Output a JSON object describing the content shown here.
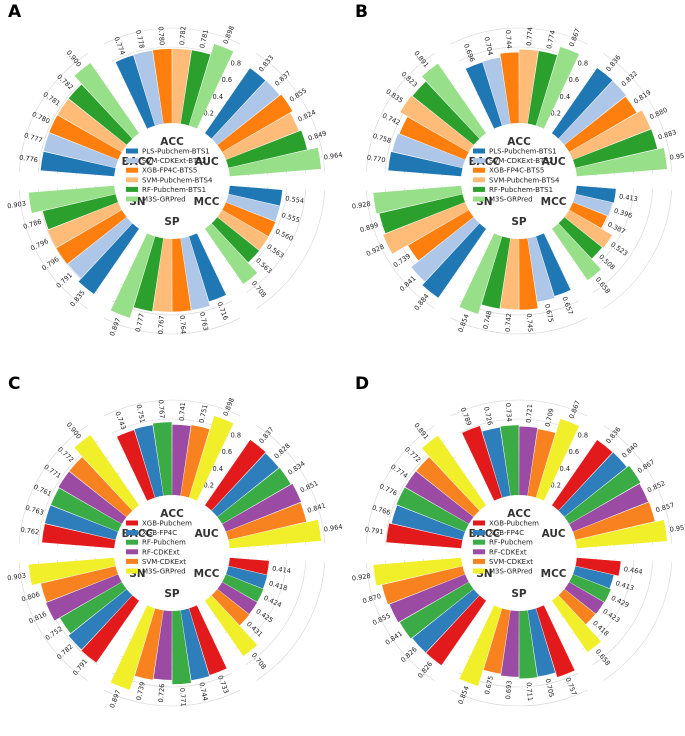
{
  "metrics": [
    "ACC",
    "AUC",
    "MCC",
    "SP",
    "SN",
    "BACC"
  ],
  "chart_data": [
    {
      "panel": "A",
      "type": "bar",
      "subtype": "radial-grouped-bar",
      "categories": [
        "ACC",
        "AUC",
        "MCC",
        "SP",
        "SN",
        "BACC"
      ],
      "ylim": [
        0,
        1
      ],
      "yticks": [
        "0.2",
        "0.4",
        "0.6",
        "0.8"
      ],
      "series": [
        {
          "name": "PLS-Pubchem-BTS1",
          "color": "#1f77b4",
          "values": [
            0.774,
            0.833,
            0.554,
            0.716,
            0.835,
            0.776
          ]
        },
        {
          "name": "SVM-CDKExt-BTS2",
          "color": "#aec7e8",
          "values": [
            0.778,
            0.837,
            0.555,
            0.763,
            0.791,
            0.777
          ]
        },
        {
          "name": "XGB-FP4C-BTS5",
          "color": "#ff7f0e",
          "values": [
            0.78,
            0.855,
            0.56,
            0.764,
            0.796,
            0.78
          ]
        },
        {
          "name": "SVM-Pubchem-BTS4",
          "color": "#ffbb78",
          "values": [
            0.782,
            0.824,
            0.563,
            0.767,
            0.796,
            0.781
          ]
        },
        {
          "name": "RF-Pubchem-BTS1",
          "color": "#2ca02c",
          "values": [
            0.781,
            0.849,
            0.563,
            0.777,
            0.786,
            0.782
          ]
        },
        {
          "name": "M3S-GRPred",
          "color": "#98df8a",
          "values": [
            0.898,
            0.964,
            0.708,
            0.897,
            0.903,
            0.9
          ]
        }
      ]
    },
    {
      "panel": "B",
      "type": "bar",
      "subtype": "radial-grouped-bar",
      "categories": [
        "ACC",
        "AUC",
        "MCC",
        "SP",
        "SN",
        "BACC"
      ],
      "ylim": [
        0,
        1
      ],
      "yticks": [
        "0.2",
        "0.4",
        "0.6",
        "0.8"
      ],
      "series": [
        {
          "name": "PLS-Pubchem-BTS1",
          "color": "#1f77b4",
          "values": [
            0.696,
            0.836,
            0.413,
            0.657,
            0.884,
            0.77
          ]
        },
        {
          "name": "SVM-CDKExt-BTS2",
          "color": "#aec7e8",
          "values": [
            0.704,
            0.832,
            0.396,
            0.675,
            0.841,
            0.758
          ]
        },
        {
          "name": "XGB-FP4C-BTS5",
          "color": "#ff7f0e",
          "values": [
            0.744,
            0.819,
            0.387,
            0.745,
            0.739,
            0.742
          ]
        },
        {
          "name": "SVM-Pubchem-BTS4",
          "color": "#ffbb78",
          "values": [
            0.774,
            0.88,
            0.523,
            0.742,
            0.928,
            0.835
          ]
        },
        {
          "name": "RF-Pubchem-BTS1",
          "color": "#2ca02c",
          "values": [
            0.774,
            0.883,
            0.508,
            0.748,
            0.899,
            0.823
          ]
        },
        {
          "name": "M3S-GRPred",
          "color": "#98df8a",
          "values": [
            0.867,
            0.953,
            0.658,
            0.854,
            0.928,
            0.891
          ]
        }
      ]
    },
    {
      "panel": "C",
      "type": "bar",
      "subtype": "radial-grouped-bar",
      "categories": [
        "ACC",
        "AUC",
        "MCC",
        "SP",
        "SN",
        "BACC"
      ],
      "ylim": [
        0,
        1
      ],
      "yticks": [
        "0.2",
        "0.4",
        "0.6",
        "0.8"
      ],
      "series": [
        {
          "name": "XGB-Pubchem",
          "color": "#e31a1c",
          "values": [
            0.743,
            0.837,
            0.414,
            0.733,
            0.791,
            0.762
          ]
        },
        {
          "name": "XGB-FP4C",
          "color": "#2e7ebc",
          "values": [
            0.751,
            0.828,
            0.418,
            0.744,
            0.782,
            0.763
          ]
        },
        {
          "name": "RF-Pubchem",
          "color": "#3bab45",
          "values": [
            0.767,
            0.834,
            0.424,
            0.771,
            0.752,
            0.761
          ]
        },
        {
          "name": "RF-CDKExt",
          "color": "#9b4ba3",
          "values": [
            0.741,
            0.851,
            0.425,
            0.726,
            0.816,
            0.771
          ]
        },
        {
          "name": "SVM-CDKExt",
          "color": "#f7821f",
          "values": [
            0.751,
            0.841,
            0.431,
            0.739,
            0.806,
            0.772
          ]
        },
        {
          "name": "M3S-GRPred",
          "color": "#f1ee2a",
          "values": [
            0.898,
            0.964,
            0.708,
            0.897,
            0.903,
            0.9
          ]
        }
      ]
    },
    {
      "panel": "D",
      "type": "bar",
      "subtype": "radial-grouped-bar",
      "categories": [
        "ACC",
        "AUC",
        "MCC",
        "SP",
        "SN",
        "BACC"
      ],
      "ylim": [
        0,
        1
      ],
      "yticks": [
        "0.2",
        "0.4",
        "0.6",
        "0.8"
      ],
      "series": [
        {
          "name": "XGB-Pubchem",
          "color": "#e31a1c",
          "values": [
            0.789,
            0.836,
            0.464,
            0.757,
            0.826,
            0.791
          ]
        },
        {
          "name": "XGB-FP4C",
          "color": "#2e7ebc",
          "values": [
            0.726,
            0.84,
            0.413,
            0.705,
            0.826,
            0.766
          ]
        },
        {
          "name": "RF-Pubchem",
          "color": "#3bab45",
          "values": [
            0.734,
            0.867,
            0.429,
            0.711,
            0.841,
            0.776
          ]
        },
        {
          "name": "RF-CDKExt",
          "color": "#9b4ba3",
          "values": [
            0.721,
            0.852,
            0.423,
            0.693,
            0.855,
            0.774
          ]
        },
        {
          "name": "SVM-CDKExt",
          "color": "#f7821f",
          "values": [
            0.709,
            0.857,
            0.418,
            0.675,
            0.87,
            0.772
          ]
        },
        {
          "name": "M3S-GRPred",
          "color": "#f1ee2a",
          "values": [
            0.867,
            0.953,
            0.658,
            0.854,
            0.928,
            0.891
          ]
        }
      ]
    }
  ]
}
